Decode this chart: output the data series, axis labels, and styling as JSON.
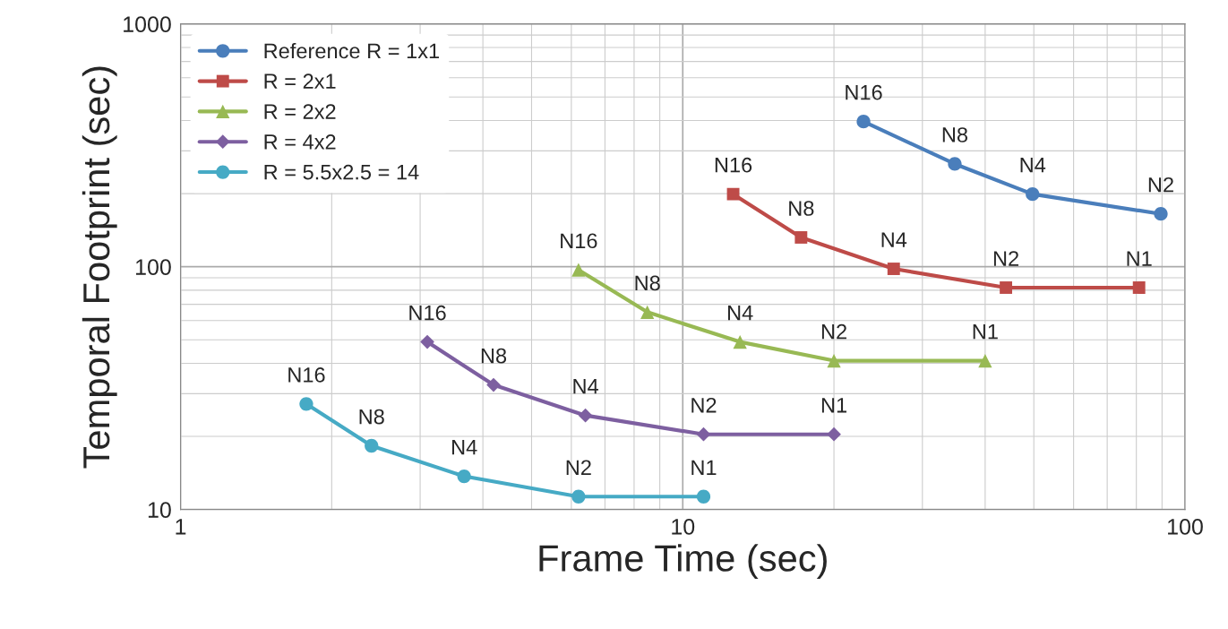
{
  "chart_data": {
    "type": "line",
    "xlabel": "Frame Time (sec)",
    "ylabel": "Temporal Footprint (sec)",
    "log": "xy",
    "xlim": [
      1,
      100
    ],
    "xticks": [
      1,
      10,
      100
    ],
    "ylim": [
      10,
      1000
    ],
    "yticks": [
      10,
      100,
      1000
    ],
    "grid": true,
    "legend": "top left",
    "line_style": "solid",
    "series": [
      {
        "name": "Reference R = 1x1",
        "color": "#4a7ebb",
        "marker": "circle",
        "x": [
          22.9,
          34.8,
          49.7,
          89.5
        ],
        "values": [
          396,
          265,
          199,
          165
        ],
        "value_labels": [
          "N16",
          "N8",
          "N4",
          "N2"
        ]
      },
      {
        "name": "R = 2x1",
        "color": "#be4b48",
        "marker": "square",
        "x": [
          12.6,
          17.2,
          26.3,
          44,
          81
        ],
        "values": [
          199,
          132,
          98,
          82,
          82
        ],
        "value_labels": [
          "N16",
          "N8",
          "N4",
          "N2",
          "N1"
        ]
      },
      {
        "name": "R = 2x2",
        "color": "#98b954",
        "marker": "triangle",
        "x": [
          6.2,
          8.5,
          13.0,
          20.0,
          40.0
        ],
        "values": [
          97,
          65,
          49,
          41,
          41
        ],
        "value_labels": [
          "N16",
          "N8",
          "N4",
          "N2",
          "N1"
        ]
      },
      {
        "name": "R = 4x2",
        "color": "#7d5fa0",
        "marker": "diamond",
        "x": [
          3.1,
          4.2,
          6.4,
          11.0,
          20.0
        ],
        "values": [
          49,
          32.6,
          24.4,
          20.4,
          20.4
        ],
        "value_labels": [
          "N16",
          "N8",
          "N4",
          "N2",
          "N1"
        ]
      },
      {
        "name": "R = 5.5x2.5 = 14",
        "color": "#46aac5",
        "marker": "circle",
        "x": [
          1.78,
          2.4,
          3.67,
          6.2,
          11.0
        ],
        "values": [
          27.2,
          18.3,
          13.7,
          11.3,
          11.3
        ],
        "value_labels": [
          "N16",
          "N8",
          "N4",
          "N2",
          "N1"
        ]
      }
    ]
  }
}
